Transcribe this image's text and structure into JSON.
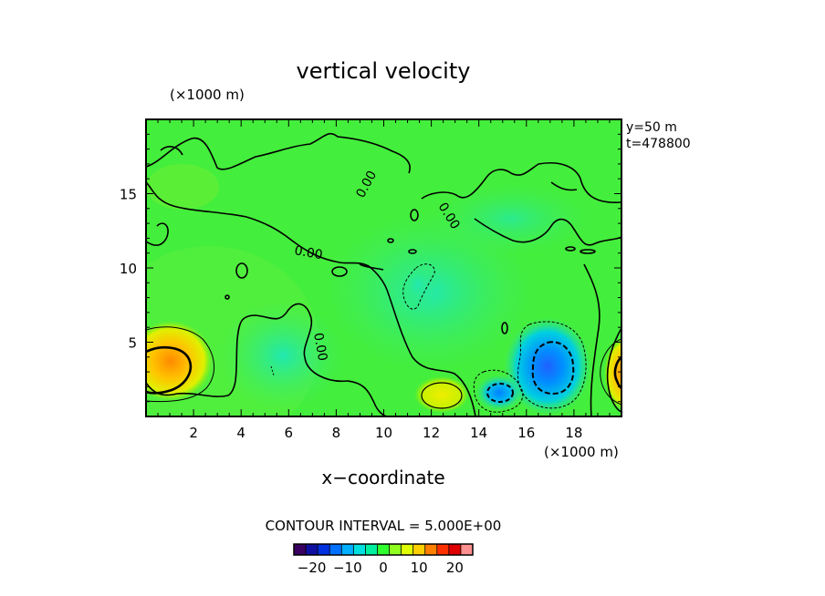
{
  "chart_data": {
    "type": "heatmap",
    "title": "vertical velocity",
    "xlabel": "x−coordinate",
    "x_unit": "(×1000 m)",
    "y_unit": "(×1000 m)",
    "xlim": [
      0,
      20
    ],
    "ylim": [
      0,
      20
    ],
    "x_ticks": [
      2,
      4,
      6,
      8,
      10,
      12,
      14,
      16,
      18
    ],
    "y_ticks": [
      5,
      10,
      15
    ],
    "info": [
      "y=50  m",
      "t=478800"
    ],
    "contour_interval_label": "CONTOUR INTERVAL = 5.000E+00",
    "contour_label": "0.00",
    "colorbar": {
      "range": [
        -25,
        25
      ],
      "ticks": [
        -20,
        -10,
        0,
        10,
        20
      ],
      "tick_labels": [
        "−20",
        "−10",
        "0",
        "10",
        "20"
      ],
      "colors": [
        "#3a0060",
        "#1010a0",
        "#0030e0",
        "#0070ff",
        "#00b0ff",
        "#00e0e0",
        "#00f0a0",
        "#30ff30",
        "#90ff20",
        "#e0ff00",
        "#ffd000",
        "#ff8000",
        "#ff3000",
        "#e00000",
        "#ff9090"
      ]
    },
    "features": [
      {
        "kind": "max",
        "x": 1.6,
        "y": 3.2,
        "value": 20
      },
      {
        "kind": "max",
        "x": 12.4,
        "y": 1.6,
        "value": 10
      },
      {
        "kind": "max",
        "x": 19.9,
        "y": 2.8,
        "value": 15
      },
      {
        "kind": "min",
        "x": 17.0,
        "y": 3.2,
        "value": -15
      },
      {
        "kind": "min",
        "x": 14.9,
        "y": 1.6,
        "value": -10
      },
      {
        "kind": "min",
        "x": 11.5,
        "y": 8.5,
        "value": -5
      }
    ]
  }
}
